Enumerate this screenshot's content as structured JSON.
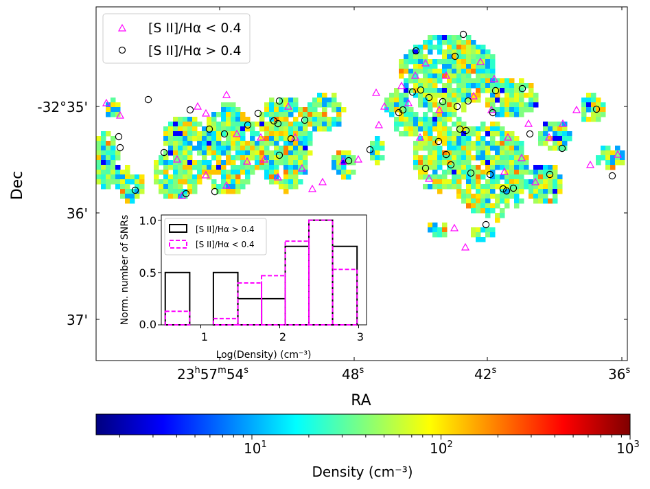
{
  "chart_data": [
    {
      "type": "scatter",
      "description_role": "sky map of gas density with SNR markers",
      "xlabel": "RA",
      "ylabel": "Dec",
      "x_ticks": [
        {
          "label": "23",
          "sup1": "h",
          "mid": "57",
          "sup2": "m",
          "tail": "54",
          "sup3": "s"
        },
        {
          "label": "48",
          "sup1": "s"
        },
        {
          "label": "42",
          "sup1": "s"
        },
        {
          "label": "36",
          "sup1": "s"
        }
      ],
      "y_ticks": [
        "-32°35'",
        "36'",
        "37'"
      ],
      "legend": {
        "location": "upper-left",
        "entries": [
          {
            "label": "[S II]/Hα < 0.4",
            "marker": "triangle",
            "color": "#ff00ff"
          },
          {
            "label": "[S II]/Hα > 0.4",
            "marker": "circle",
            "color": "#000000"
          }
        ]
      }
    },
    {
      "type": "bar",
      "style": "step-histogram",
      "xlabel": "Log(Density) (cm⁻³)",
      "ylabel": "Norm. number of SNRs",
      "xlim": [
        0.5,
        3.1
      ],
      "ylim": [
        0.0,
        1.05
      ],
      "x_ticks": [
        "1",
        "2",
        "3"
      ],
      "y_ticks": [
        "0.0",
        "0.5",
        "1.0"
      ],
      "bin_edges": [
        0.55,
        0.86,
        1.16,
        1.47,
        1.77,
        2.07,
        2.37,
        2.67,
        2.98
      ],
      "series": [
        {
          "name": "[S II]/Hα > 0.4",
          "color": "#000000",
          "dash": "solid",
          "values": [
            0.5,
            0.0,
            0.5,
            0.25,
            0.25,
            0.75,
            1.0,
            0.75
          ]
        },
        {
          "name": "[S II]/Hα < 0.4",
          "color": "#ff00ff",
          "dash": "dashed",
          "values": [
            0.13,
            0.0,
            0.06,
            0.4,
            0.47,
            0.8,
            1.0,
            0.53
          ]
        }
      ]
    },
    {
      "type": "heatmap",
      "role": "colorbar",
      "label": "Density (cm⁻³)",
      "scale": "log",
      "range": [
        1.5,
        1000
      ],
      "ticks": [
        {
          "base": "10",
          "exp": "1"
        },
        {
          "base": "10",
          "exp": "2"
        },
        {
          "base": "10",
          "exp": "3"
        }
      ],
      "colormap": [
        "#00007f",
        "#0000ff",
        "#007fff",
        "#00ffff",
        "#7fff7f",
        "#ffff00",
        "#ff7f00",
        "#ff0000",
        "#7f0000"
      ]
    }
  ]
}
